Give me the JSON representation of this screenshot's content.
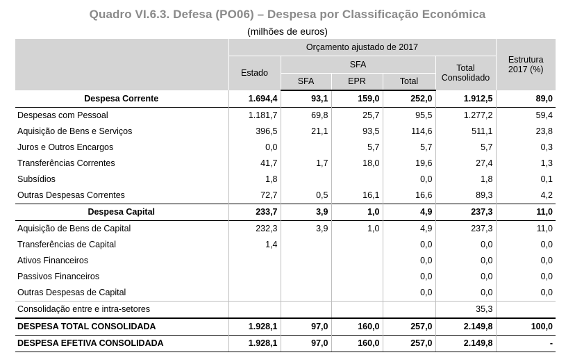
{
  "title": "Quadro VI.6.3. Defesa (PO06) – Despesa por Classificação Económica",
  "subtitle": "(milhões de euros)",
  "header": {
    "orcamento": "Orçamento ajustado de 2017",
    "estado": "Estado",
    "sfa_group": "SFA",
    "sfa": "SFA",
    "epr": "EPR",
    "total": "Total",
    "total_consolidado": "Total Consolidado",
    "estrutura": "Estrutura 2017 (%)"
  },
  "rows": [
    {
      "label": "Despesa Corrente",
      "estado": "1.694,4",
      "sfa": "93,1",
      "epr": "159,0",
      "total": "252,0",
      "consolidado": "1.912,5",
      "estrutura": "89,0"
    },
    {
      "label": "Despesas com Pessoal",
      "estado": "1.181,7",
      "sfa": "69,8",
      "epr": "25,7",
      "total": "95,5",
      "consolidado": "1.277,2",
      "estrutura": "59,4"
    },
    {
      "label": "Aquisição de Bens e Serviços",
      "estado": "396,5",
      "sfa": "21,1",
      "epr": "93,5",
      "total": "114,6",
      "consolidado": "511,1",
      "estrutura": "23,8"
    },
    {
      "label": "Juros e Outros Encargos",
      "estado": "0,0",
      "sfa": "",
      "epr": "5,7",
      "total": "5,7",
      "consolidado": "5,7",
      "estrutura": "0,3"
    },
    {
      "label": "Transferências Correntes",
      "estado": "41,7",
      "sfa": "1,7",
      "epr": "18,0",
      "total": "19,6",
      "consolidado": "27,4",
      "estrutura": "1,3"
    },
    {
      "label": "Subsídios",
      "estado": "1,8",
      "sfa": "",
      "epr": "",
      "total": "0,0",
      "consolidado": "1,8",
      "estrutura": "0,1"
    },
    {
      "label": "Outras Despesas Correntes",
      "estado": "72,7",
      "sfa": "0,5",
      "epr": "16,1",
      "total": "16,6",
      "consolidado": "89,3",
      "estrutura": "4,2"
    },
    {
      "label": "Despesa Capital",
      "estado": "233,7",
      "sfa": "3,9",
      "epr": "1,0",
      "total": "4,9",
      "consolidado": "237,3",
      "estrutura": "11,0"
    },
    {
      "label": "Aquisição de Bens de Capital",
      "estado": "232,3",
      "sfa": "3,9",
      "epr": "1,0",
      "total": "4,9",
      "consolidado": "237,3",
      "estrutura": "11,0"
    },
    {
      "label": "Transferências de Capital",
      "estado": "1,4",
      "sfa": "",
      "epr": "",
      "total": "0,0",
      "consolidado": "0,0",
      "estrutura": "0,0"
    },
    {
      "label": "Ativos Financeiros",
      "estado": "",
      "sfa": "",
      "epr": "",
      "total": "0,0",
      "consolidado": "0,0",
      "estrutura": "0,0"
    },
    {
      "label": "Passivos Financeiros",
      "estado": "",
      "sfa": "",
      "epr": "",
      "total": "0,0",
      "consolidado": "0,0",
      "estrutura": "0,0"
    },
    {
      "label": "Outras Despesas de Capital",
      "estado": "",
      "sfa": "",
      "epr": "",
      "total": "0,0",
      "consolidado": "0,0",
      "estrutura": "0,0"
    },
    {
      "label": "Consolidação entre e intra-setores",
      "estado": "",
      "sfa": "",
      "epr": "",
      "total": "",
      "consolidado": "35,3",
      "estrutura": ""
    },
    {
      "label": "DESPESA TOTAL CONSOLIDADA",
      "estado": "1.928,1",
      "sfa": "97,0",
      "epr": "160,0",
      "total": "257,0",
      "consolidado": "2.149,8",
      "estrutura": "100,0"
    },
    {
      "label": "DESPESA EFETIVA CONSOLIDADA",
      "estado": "1.928,1",
      "sfa": "97,0",
      "epr": "160,0",
      "total": "257,0",
      "consolidado": "2.149,8",
      "estrutura": "-"
    }
  ]
}
